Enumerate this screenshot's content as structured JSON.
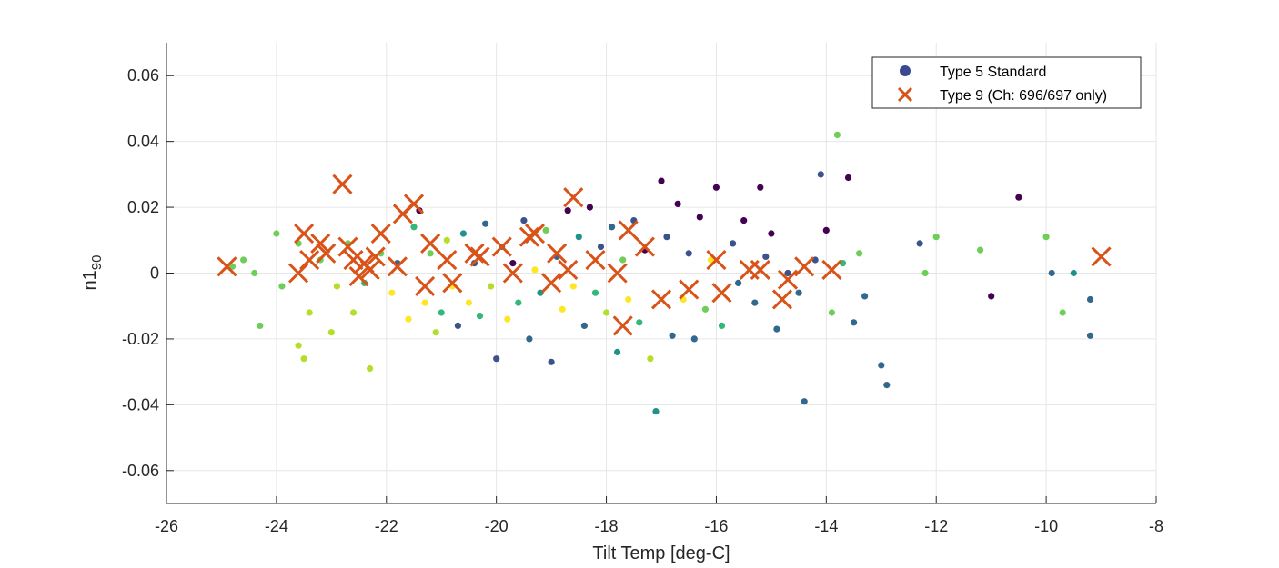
{
  "chart_data": {
    "type": "scatter",
    "xlabel": "Tilt Temp [deg-C]",
    "ylabel": "n1",
    "ylabel_sub": "90",
    "xlim": [
      -26,
      -8
    ],
    "ylim": [
      -0.07,
      0.07
    ],
    "xticks": [
      -26,
      -24,
      -22,
      -20,
      -18,
      -16,
      -14,
      -12,
      -10,
      -8
    ],
    "yticks": [
      -0.06,
      -0.04,
      -0.02,
      0,
      0.02,
      0.04,
      0.06
    ],
    "xtick_labels": [
      "-26",
      "-24",
      "-22",
      "-20",
      "-18",
      "-16",
      "-14",
      "-12",
      "-10",
      "-8"
    ],
    "ytick_labels": [
      "-0.06",
      "-0.04",
      "-0.02",
      "0",
      "0.02",
      "0.04",
      "0.06"
    ],
    "grid": true,
    "legend_position": "top-right",
    "legend": [
      {
        "label": "Type 5 Standard",
        "marker": "circle",
        "color": "#3b4994"
      },
      {
        "label": "Type 9 (Ch: 696/697 only)",
        "marker": "x",
        "color": "#d95319"
      }
    ],
    "series": [
      {
        "name": "Type 5 Standard",
        "marker": "circle",
        "palette": [
          "#440154",
          "#3b528b",
          "#31688e",
          "#21918c",
          "#35b779",
          "#6ece58",
          "#b5de2b",
          "#fde725"
        ],
        "points": [
          [
            -24.8,
            0.002,
            5
          ],
          [
            -24.6,
            0.004,
            5
          ],
          [
            -24.4,
            0.0,
            5
          ],
          [
            -24.3,
            -0.016,
            5
          ],
          [
            -24.0,
            0.012,
            5
          ],
          [
            -23.9,
            -0.004,
            5
          ],
          [
            -23.6,
            0.009,
            5
          ],
          [
            -23.6,
            -0.022,
            6
          ],
          [
            -23.5,
            -0.026,
            6
          ],
          [
            -23.4,
            -0.012,
            6
          ],
          [
            -23.2,
            0.004,
            5
          ],
          [
            -23.0,
            -0.018,
            6
          ],
          [
            -22.9,
            -0.004,
            6
          ],
          [
            -22.7,
            0.009,
            5
          ],
          [
            -22.6,
            -0.012,
            6
          ],
          [
            -22.4,
            -0.003,
            4
          ],
          [
            -22.3,
            -0.029,
            6
          ],
          [
            -22.1,
            0.006,
            5
          ],
          [
            -21.9,
            -0.006,
            7
          ],
          [
            -21.8,
            0.003,
            2
          ],
          [
            -21.6,
            -0.014,
            7
          ],
          [
            -21.5,
            0.014,
            4
          ],
          [
            -21.4,
            0.019,
            0
          ],
          [
            -21.3,
            -0.009,
            7
          ],
          [
            -21.2,
            0.006,
            5
          ],
          [
            -21.1,
            -0.018,
            6
          ],
          [
            -21.0,
            -0.012,
            4
          ],
          [
            -20.9,
            0.01,
            6
          ],
          [
            -20.8,
            -0.004,
            7
          ],
          [
            -20.7,
            -0.016,
            1
          ],
          [
            -20.6,
            0.012,
            3
          ],
          [
            -20.5,
            -0.009,
            7
          ],
          [
            -20.4,
            0.003,
            1
          ],
          [
            -20.3,
            -0.013,
            4
          ],
          [
            -20.2,
            0.015,
            2
          ],
          [
            -20.1,
            -0.004,
            6
          ],
          [
            -20.0,
            -0.026,
            1
          ],
          [
            -19.9,
            0.008,
            3
          ],
          [
            -19.8,
            -0.014,
            7
          ],
          [
            -19.7,
            0.003,
            0
          ],
          [
            -19.6,
            -0.009,
            4
          ],
          [
            -19.5,
            0.016,
            1
          ],
          [
            -19.4,
            -0.02,
            2
          ],
          [
            -19.3,
            0.001,
            7
          ],
          [
            -19.2,
            -0.006,
            3
          ],
          [
            -19.1,
            0.013,
            5
          ],
          [
            -19.0,
            -0.027,
            1
          ],
          [
            -18.9,
            0.005,
            2
          ],
          [
            -18.8,
            -0.011,
            7
          ],
          [
            -18.7,
            0.019,
            0
          ],
          [
            -18.6,
            -0.004,
            7
          ],
          [
            -18.5,
            0.011,
            3
          ],
          [
            -18.4,
            -0.016,
            2
          ],
          [
            -18.3,
            0.02,
            0
          ],
          [
            -18.2,
            -0.006,
            4
          ],
          [
            -18.1,
            0.008,
            1
          ],
          [
            -18.0,
            -0.012,
            6
          ],
          [
            -17.9,
            0.014,
            2
          ],
          [
            -17.8,
            -0.024,
            3
          ],
          [
            -17.7,
            0.004,
            5
          ],
          [
            -17.6,
            -0.008,
            7
          ],
          [
            -17.5,
            0.016,
            1
          ],
          [
            -17.4,
            -0.015,
            4
          ],
          [
            -17.3,
            0.007,
            0
          ],
          [
            -17.2,
            -0.026,
            6
          ],
          [
            -17.1,
            -0.042,
            3
          ],
          [
            -17.0,
            0.028,
            0
          ],
          [
            -16.9,
            0.011,
            1
          ],
          [
            -16.8,
            -0.019,
            2
          ],
          [
            -16.7,
            0.021,
            0
          ],
          [
            -16.6,
            -0.008,
            7
          ],
          [
            -16.5,
            0.006,
            1
          ],
          [
            -16.4,
            -0.02,
            2
          ],
          [
            -16.3,
            0.017,
            0
          ],
          [
            -16.2,
            -0.011,
            5
          ],
          [
            -16.1,
            0.004,
            7
          ],
          [
            -16.0,
            0.026,
            0
          ],
          [
            -15.9,
            -0.016,
            4
          ],
          [
            -15.7,
            0.009,
            1
          ],
          [
            -15.6,
            -0.003,
            2
          ],
          [
            -15.5,
            0.016,
            0
          ],
          [
            -15.3,
            -0.009,
            2
          ],
          [
            -15.2,
            0.026,
            0
          ],
          [
            -15.1,
            0.005,
            1
          ],
          [
            -15.0,
            0.012,
            0
          ],
          [
            -14.9,
            -0.017,
            2
          ],
          [
            -14.7,
            0.0,
            1
          ],
          [
            -14.5,
            -0.006,
            2
          ],
          [
            -14.4,
            -0.039,
            2
          ],
          [
            -14.2,
            0.004,
            1
          ],
          [
            -14.1,
            0.03,
            1
          ],
          [
            -14.0,
            0.013,
            0
          ],
          [
            -13.9,
            -0.012,
            5
          ],
          [
            -13.8,
            0.042,
            5
          ],
          [
            -13.7,
            0.003,
            4
          ],
          [
            -13.6,
            0.029,
            0
          ],
          [
            -13.5,
            -0.015,
            2
          ],
          [
            -13.4,
            0.006,
            5
          ],
          [
            -13.3,
            -0.007,
            2
          ],
          [
            -13.0,
            -0.028,
            2
          ],
          [
            -12.9,
            -0.034,
            2
          ],
          [
            -12.3,
            0.009,
            1
          ],
          [
            -12.2,
            0.0,
            5
          ],
          [
            -12.0,
            0.011,
            5
          ],
          [
            -11.2,
            0.007,
            5
          ],
          [
            -11.0,
            -0.007,
            0
          ],
          [
            -10.5,
            0.023,
            0
          ],
          [
            -10.0,
            0.011,
            5
          ],
          [
            -9.9,
            0.0,
            2
          ],
          [
            -9.7,
            -0.012,
            5
          ],
          [
            -9.5,
            0.0,
            3
          ],
          [
            -9.2,
            -0.019,
            2
          ],
          [
            -9.2,
            -0.008,
            2
          ]
        ]
      },
      {
        "name": "Type 9 (Ch: 696/697 only)",
        "marker": "x",
        "color": "#d95319",
        "points": [
          [
            -24.9,
            0.002
          ],
          [
            -23.6,
            0.0
          ],
          [
            -23.5,
            0.012
          ],
          [
            -23.4,
            0.004
          ],
          [
            -23.2,
            0.009
          ],
          [
            -23.1,
            0.006
          ],
          [
            -22.8,
            0.027
          ],
          [
            -22.7,
            0.008
          ],
          [
            -22.6,
            0.004
          ],
          [
            -22.5,
            -0.001
          ],
          [
            -22.4,
            0.003
          ],
          [
            -22.3,
            0.001
          ],
          [
            -22.2,
            0.005
          ],
          [
            -22.1,
            0.012
          ],
          [
            -21.8,
            0.002
          ],
          [
            -21.7,
            0.018
          ],
          [
            -21.5,
            0.021
          ],
          [
            -21.3,
            -0.004
          ],
          [
            -21.2,
            0.009
          ],
          [
            -20.9,
            0.004
          ],
          [
            -20.8,
            -0.003
          ],
          [
            -20.4,
            0.006
          ],
          [
            -20.3,
            0.005
          ],
          [
            -19.9,
            0.008
          ],
          [
            -19.7,
            0.0
          ],
          [
            -19.4,
            0.011
          ],
          [
            -19.3,
            0.012
          ],
          [
            -19.0,
            -0.003
          ],
          [
            -18.9,
            0.006
          ],
          [
            -18.7,
            0.001
          ],
          [
            -18.6,
            0.023
          ],
          [
            -18.2,
            0.004
          ],
          [
            -17.8,
            0.0
          ],
          [
            -17.7,
            -0.016
          ],
          [
            -17.6,
            0.013
          ],
          [
            -17.3,
            0.008
          ],
          [
            -17.0,
            -0.008
          ],
          [
            -16.5,
            -0.005
          ],
          [
            -16.0,
            0.004
          ],
          [
            -15.9,
            -0.006
          ],
          [
            -15.4,
            0.001
          ],
          [
            -15.2,
            0.001
          ],
          [
            -14.8,
            -0.008
          ],
          [
            -14.7,
            -0.002
          ],
          [
            -14.4,
            0.002
          ],
          [
            -13.9,
            0.001
          ],
          [
            -9.0,
            0.005
          ]
        ]
      }
    ]
  }
}
